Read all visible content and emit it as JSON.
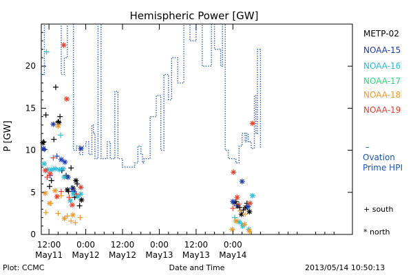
{
  "chart_data": {
    "type": "scatter",
    "title": "Hemispheric Power [GW]",
    "xlabel": "Date and Time",
    "ylabel": "P [GW]",
    "x_units": "hours from 2013-05-11 00:00 UT",
    "xlim": [
      9.5,
      111
    ],
    "ylim": [
      0,
      25
    ],
    "yticks": [
      0,
      5,
      10,
      15,
      20
    ],
    "xticks": [
      {
        "t": 12,
        "time": "12:00",
        "date": "May11"
      },
      {
        "t": 24,
        "time": "0:00",
        "date": "May12"
      },
      {
        "t": 36,
        "time": "12:00",
        "date": "May12"
      },
      {
        "t": 48,
        "time": "0:00",
        "date": "May13"
      },
      {
        "t": 60,
        "time": "12:00",
        "date": "May13"
      },
      {
        "t": 72,
        "time": "0:00",
        "date": "May14"
      }
    ],
    "series": [
      {
        "name": "METP-02",
        "color": "#000000",
        "south": [
          [
            10.3,
            11.0
          ],
          [
            11.0,
            14.2
          ],
          [
            12.2,
            5.7
          ],
          [
            12.8,
            6.4
          ],
          [
            13.6,
            11.3
          ],
          [
            14.2,
            17.5
          ],
          [
            15.0,
            13.4
          ],
          [
            15.6,
            14.0
          ],
          [
            16.2,
            7.6
          ],
          [
            17.6,
            7.0
          ],
          [
            18.4,
            5.1
          ],
          [
            19.2,
            7.9
          ],
          [
            20.4,
            4.4
          ],
          [
            21.2,
            6.0
          ],
          [
            22.0,
            3.4
          ],
          [
            73.0,
            3.9
          ],
          [
            74.2,
            3.2
          ],
          [
            75.4,
            2.9
          ],
          [
            76.6,
            3.7
          ]
        ],
        "north": [
          [
            10.0,
            10.9
          ],
          [
            15.2,
            13.3
          ],
          [
            18.0,
            5.3
          ],
          [
            19.8,
            5.5
          ],
          [
            20.8,
            6.4
          ],
          [
            22.6,
            4.1
          ],
          [
            72.4,
            3.8
          ],
          [
            73.6,
            3.4
          ],
          [
            74.8,
            2.4
          ],
          [
            76.2,
            3.2
          ],
          [
            77.4,
            2.7
          ]
        ]
      },
      {
        "name": "NOAA-15",
        "color": "#1d3bb5",
        "south": [
          [
            10.6,
            10.1
          ],
          [
            12.4,
            7.0
          ],
          [
            14.6,
            9.3
          ],
          [
            19.4,
            5.5
          ],
          [
            73.2,
            3.4
          ]
        ],
        "north": [
          [
            10.2,
            10.2
          ],
          [
            13.4,
            13.1
          ],
          [
            16.0,
            8.9
          ],
          [
            17.2,
            8.6
          ],
          [
            18.2,
            6.8
          ],
          [
            20.2,
            5.1
          ],
          [
            22.4,
            10.2
          ],
          [
            72.0,
            3.9
          ],
          [
            75.0,
            6.3
          ],
          [
            77.0,
            3.3
          ]
        ]
      },
      {
        "name": "NOAA-16",
        "color": "#2bbcd8",
        "south": [
          [
            11.2,
            21.7
          ],
          [
            15.8,
            11.8
          ],
          [
            21.0,
            4.8
          ],
          [
            72.6,
            2.0
          ],
          [
            74.8,
            1.3
          ]
        ],
        "north": [
          [
            10.4,
            8.4
          ],
          [
            11.6,
            7.7
          ],
          [
            12.8,
            7.7
          ],
          [
            14.0,
            7.8
          ],
          [
            15.4,
            7.7
          ],
          [
            16.6,
            7.8
          ],
          [
            17.0,
            6.8
          ],
          [
            19.0,
            4.0
          ],
          [
            20.0,
            4.8
          ],
          [
            21.4,
            4.5
          ],
          [
            22.4,
            4.8
          ],
          [
            74.0,
            1.5
          ],
          [
            75.2,
            1.0
          ],
          [
            77.2,
            0.6
          ],
          [
            78.4,
            4.6
          ]
        ]
      },
      {
        "name": "NOAA-17",
        "color": "#2fd87a",
        "south": [],
        "north": []
      },
      {
        "name": "NOAA-18",
        "color": "#ee9a2c",
        "south": [
          [
            11.0,
            2.6
          ],
          [
            12.6,
            3.7
          ],
          [
            15.0,
            2.5
          ],
          [
            16.0,
            4.6
          ],
          [
            18.0,
            2.2
          ],
          [
            19.2,
            1.6
          ],
          [
            20.6,
            1.4
          ],
          [
            22.2,
            2.0
          ],
          [
            74.4,
            2.8
          ],
          [
            76.0,
            2.4
          ]
        ],
        "north": [
          [
            10.8,
            4.9
          ],
          [
            12.2,
            3.7
          ],
          [
            14.0,
            5.2
          ],
          [
            15.0,
            12.9
          ],
          [
            17.0,
            1.9
          ],
          [
            19.8,
            2.3
          ],
          [
            71.8,
            0.6
          ],
          [
            73.0,
            1.6
          ],
          [
            75.8,
            1.2
          ],
          [
            77.4,
            0.4
          ]
        ]
      },
      {
        "name": "NOAA-19",
        "color": "#e8402d",
        "south": [
          [
            11.4,
            6.8
          ],
          [
            13.4,
            9.1
          ],
          [
            16.0,
            5.1
          ],
          [
            18.6,
            4.4
          ],
          [
            21.0,
            4.8
          ],
          [
            72.0,
            3.1
          ],
          [
            74.0,
            3.6
          ]
        ],
        "north": [
          [
            10.8,
            7.6
          ],
          [
            12.4,
            7.2
          ],
          [
            14.6,
            4.5
          ],
          [
            16.8,
            22.5
          ],
          [
            17.8,
            16.1
          ],
          [
            19.6,
            3.5
          ],
          [
            22.4,
            5.6
          ],
          [
            72.2,
            7.4
          ],
          [
            73.4,
            4.4
          ],
          [
            77.6,
            3.7
          ],
          [
            78.4,
            13.2
          ]
        ]
      }
    ],
    "ovation": {
      "name": "Ovation Prime HPI",
      "color": "#1d52b5",
      "line": "dotted",
      "points": [
        [
          9.5,
          19
        ],
        [
          10.5,
          26
        ],
        [
          14,
          26
        ],
        [
          15,
          26
        ],
        [
          16,
          19
        ],
        [
          17,
          21
        ],
        [
          17.5,
          21
        ],
        [
          18,
          26
        ],
        [
          19,
          26
        ],
        [
          19.5,
          26
        ],
        [
          20,
          10
        ],
        [
          21,
          10.5
        ],
        [
          22,
          9.5
        ],
        [
          23,
          10.5
        ],
        [
          24,
          11
        ],
        [
          25,
          9.5
        ],
        [
          26,
          13
        ],
        [
          26.5,
          12
        ],
        [
          27,
          9
        ],
        [
          27.5,
          9
        ],
        [
          28,
          26
        ],
        [
          28.5,
          26
        ],
        [
          29,
          9
        ],
        [
          30,
          9
        ],
        [
          31,
          11
        ],
        [
          31.5,
          11
        ],
        [
          32,
          9
        ],
        [
          33,
          9
        ],
        [
          33.5,
          17
        ],
        [
          34,
          17
        ],
        [
          34.5,
          9
        ],
        [
          35,
          9
        ],
        [
          35.5,
          9
        ],
        [
          36,
          8
        ],
        [
          37,
          8
        ],
        [
          39,
          8
        ],
        [
          40,
          8.5
        ],
        [
          41,
          10.5
        ],
        [
          42,
          9.5
        ],
        [
          42.5,
          8.5
        ],
        [
          43,
          9
        ],
        [
          44,
          9
        ],
        [
          45,
          14
        ],
        [
          46,
          14
        ],
        [
          47,
          16.5
        ],
        [
          48,
          16.5
        ],
        [
          48.5,
          10
        ],
        [
          49,
          10
        ],
        [
          49.5,
          19
        ],
        [
          50,
          19
        ],
        [
          51,
          16
        ],
        [
          51.5,
          16
        ],
        [
          52,
          21
        ],
        [
          53,
          21
        ],
        [
          54,
          18
        ],
        [
          55,
          18
        ],
        [
          56,
          26
        ],
        [
          57,
          26
        ],
        [
          58,
          23
        ],
        [
          59,
          23
        ],
        [
          60,
          26
        ],
        [
          61,
          26
        ],
        [
          62,
          20
        ],
        [
          63,
          20
        ],
        [
          64,
          20
        ],
        [
          65,
          26
        ],
        [
          66,
          22
        ],
        [
          67,
          22
        ],
        [
          68,
          20
        ],
        [
          68.5,
          20
        ],
        [
          68.6,
          26
        ],
        [
          69,
          26
        ],
        [
          69.5,
          10
        ],
        [
          70,
          10
        ],
        [
          70.5,
          9
        ],
        [
          72,
          9
        ],
        [
          73,
          8.5
        ],
        [
          74,
          10.5
        ],
        [
          75,
          12
        ],
        [
          76,
          11
        ],
        [
          76.5,
          12
        ],
        [
          77,
          11
        ],
        [
          78,
          10.2
        ],
        [
          79,
          16.5
        ],
        [
          79.5,
          12
        ],
        [
          80,
          22
        ],
        [
          80.5,
          22
        ],
        [
          81,
          10.3
        ]
      ]
    },
    "legend_placement": "right",
    "grid": false
  },
  "key": {
    "south": "south",
    "north": "north"
  },
  "footer": {
    "left": "Plot: CCMC",
    "right": "2013/05/14 10:50:13"
  }
}
